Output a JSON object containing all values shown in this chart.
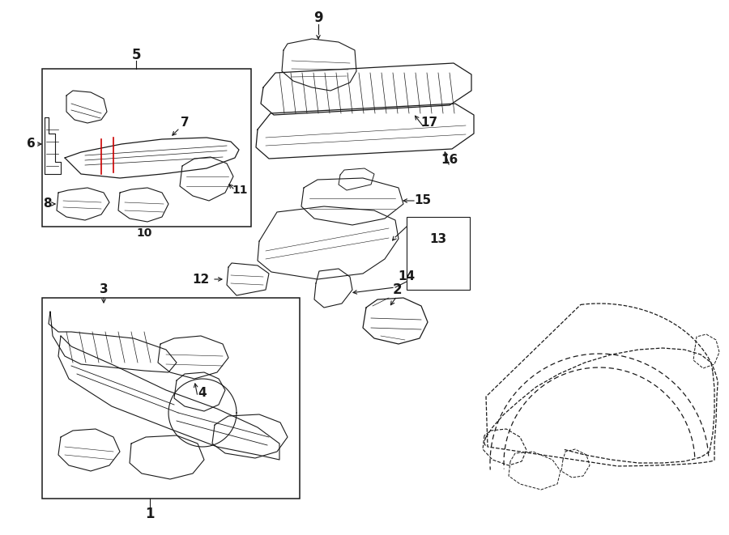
{
  "bg_color": "#ffffff",
  "line_color": "#1a1a1a",
  "red_color": "#cc0000",
  "fig_width": 9.0,
  "fig_height": 6.61,
  "dpi": 100
}
